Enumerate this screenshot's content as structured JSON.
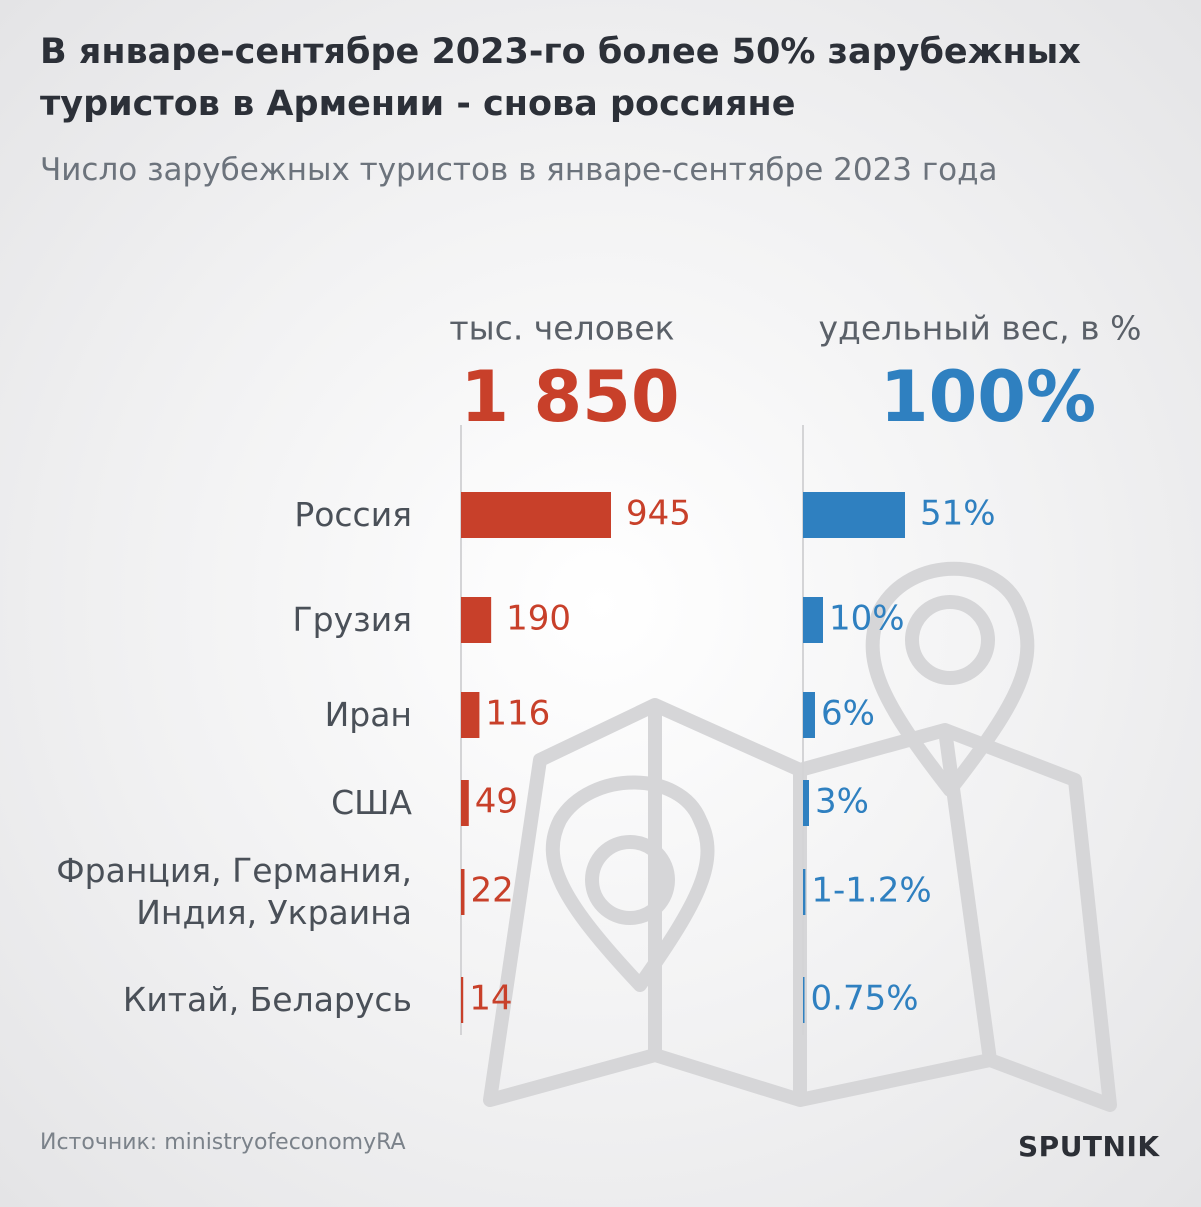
{
  "chart_data": {
    "type": "bar",
    "title": "В январе-сентябре 2023-го более 50% зарубежных туристов в Армении - снова россияне",
    "subtitle": "Число зарубежных туристов в январе-сентябре 2023 года",
    "categories": [
      "Россия",
      "Грузия",
      "Иран",
      "США",
      "Франция, Германия, Индия, Украина",
      "Китай, Беларусь"
    ],
    "series": [
      {
        "name": "тыс. человек",
        "color": "#c8402a",
        "total": {
          "value": 1850,
          "label": "1 850"
        },
        "values": [
          945,
          190,
          116,
          49,
          22,
          14
        ]
      },
      {
        "name": "удельный вес, в %",
        "color": "#2f80c0",
        "total": {
          "value": 100,
          "label": "100%"
        },
        "values": [
          51,
          10,
          6,
          3,
          1.2,
          0.75
        ],
        "value_labels": [
          "51%",
          "10%",
          "6%",
          "3%",
          "1-1.2%",
          "0.75%"
        ]
      }
    ],
    "source": "Источник: ministryofeconomyRA",
    "logo": "SPUTNIK"
  }
}
